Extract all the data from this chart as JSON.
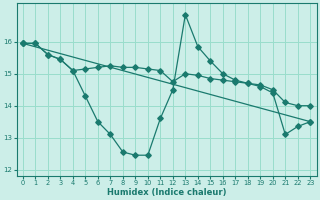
{
  "xlabel": "Humidex (Indice chaleur)",
  "ylabel": "",
  "background_color": "#cceee8",
  "grid_color": "#99ddcc",
  "line_color": "#1a7a6e",
  "xlim": [
    -0.5,
    23.5
  ],
  "ylim": [
    11.8,
    17.2
  ],
  "yticks": [
    12,
    13,
    14,
    15,
    16
  ],
  "xticks": [
    0,
    1,
    2,
    3,
    4,
    5,
    6,
    7,
    8,
    9,
    10,
    11,
    12,
    13,
    14,
    15,
    16,
    17,
    18,
    19,
    20,
    21,
    22,
    23
  ],
  "series1_x": [
    0,
    1,
    2,
    3,
    4,
    5,
    6,
    7,
    8,
    9,
    10,
    11,
    12,
    13,
    14,
    15,
    16,
    17,
    18,
    19,
    20,
    21,
    22,
    23
  ],
  "series1_y": [
    15.95,
    15.95,
    15.6,
    15.45,
    15.1,
    15.15,
    15.2,
    15.25,
    15.2,
    15.2,
    15.15,
    15.1,
    14.75,
    15.0,
    14.95,
    14.85,
    14.8,
    14.75,
    14.7,
    14.65,
    14.5,
    14.1,
    14.0,
    14.0
  ],
  "series2_x": [
    0,
    1,
    2,
    3,
    4,
    5,
    6,
    7,
    8,
    9,
    10,
    11,
    12,
    13,
    14,
    15,
    16,
    17,
    18,
    19,
    20,
    21,
    22,
    23
  ],
  "series2_y": [
    15.95,
    15.95,
    15.6,
    15.45,
    15.1,
    14.3,
    13.5,
    13.1,
    12.55,
    12.45,
    12.45,
    13.6,
    14.5,
    16.85,
    15.85,
    15.4,
    15.0,
    14.8,
    14.7,
    14.6,
    14.4,
    13.1,
    13.35,
    13.5
  ],
  "series3_x": [
    0,
    23
  ],
  "series3_y": [
    15.95,
    13.5
  ]
}
